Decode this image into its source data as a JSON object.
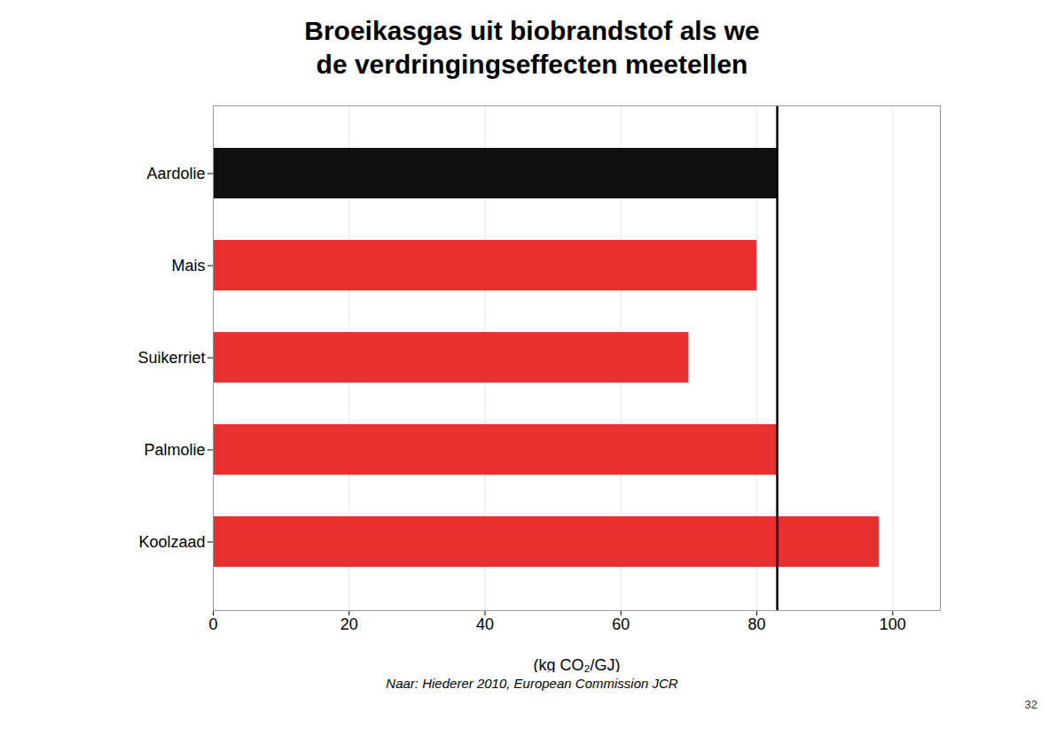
{
  "chart_data": {
    "type": "bar",
    "title": "Broeikasgas uit biobrandstof als we\nde verdringingseffecten meetellen",
    "orientation": "horizontal",
    "categories": [
      "Aardolie",
      "Mais",
      "Suikerriet",
      "Palmolie",
      "Koolzaad"
    ],
    "values": [
      83,
      80,
      70,
      83,
      98
    ],
    "colors": [
      "#111111",
      "#e83030",
      "#e83030",
      "#e83030",
      "#e83030"
    ],
    "x_label": "(kg CO₂/GJ)",
    "xlim": [
      0,
      107
    ],
    "xticks": [
      0,
      20,
      40,
      60,
      80,
      100
    ],
    "reference_line": {
      "value": 83,
      "color": "#000000"
    },
    "grid": true,
    "annotations": [
      "Naar: Hiederer 2010, European Commission JCR",
      "32"
    ]
  }
}
